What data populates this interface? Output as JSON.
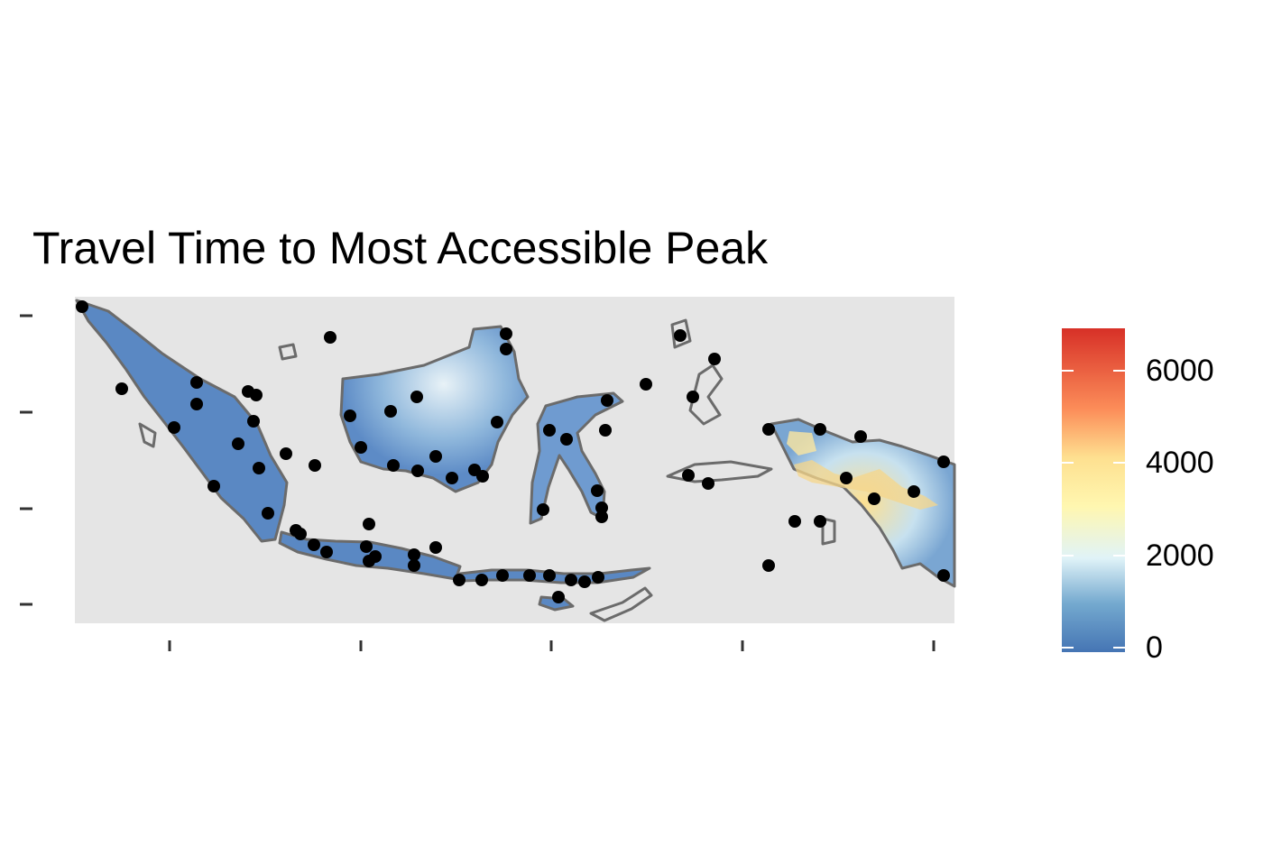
{
  "title": "Travel Time to Most Accessible Peak",
  "colors": {
    "panel_background": "#e5e5e5",
    "land_border": "#6b6b6b",
    "point": "#000000",
    "low": "#4575b4",
    "mid_low": "#91bfdb",
    "mid": "#f7f7e0",
    "mid_high": "#fee090",
    "high": "#d73027"
  },
  "legend": {
    "type": "continuous colorbar",
    "palette": "RdYlBu (reversed)",
    "range": [
      0,
      6800
    ],
    "breaks": [
      "0",
      "2000",
      "4000",
      "6000"
    ]
  },
  "axes": {
    "x_tick_labels": "none shown",
    "y_tick_labels": "none shown",
    "x_tick_count": 5,
    "y_tick_count": 4
  },
  "map": {
    "region": "Indonesian archipelago",
    "fill": "travel time raster",
    "point_markers": "peaks"
  }
}
